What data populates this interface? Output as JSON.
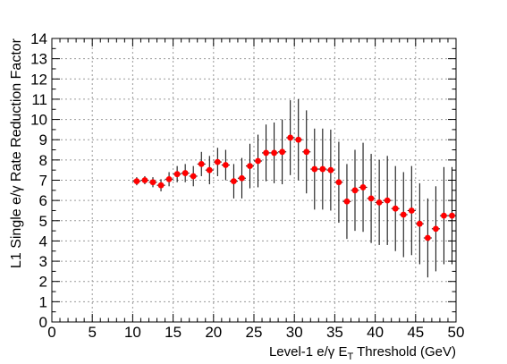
{
  "chart_data": {
    "type": "scatter",
    "xlabel_main": "Level-1 e/γ E",
    "xlabel_sub": "T",
    "xlabel_tail": " Threshold (GeV)",
    "ylabel": "L1 Single e/γ Rate Reduction Factor",
    "xlim": [
      0,
      50
    ],
    "ylim": [
      0,
      14
    ],
    "grid": true,
    "x_ticks": [
      0,
      5,
      10,
      15,
      20,
      25,
      30,
      35,
      40,
      45,
      50
    ],
    "y_ticks": [
      0,
      1,
      2,
      3,
      4,
      5,
      6,
      7,
      8,
      9,
      10,
      11,
      12,
      13,
      14
    ],
    "marker_color": "#ff0000",
    "points": [
      {
        "x": 10.5,
        "y": 6.95,
        "err": 0.2
      },
      {
        "x": 11.5,
        "y": 7.0,
        "err": 0.2
      },
      {
        "x": 12.5,
        "y": 6.9,
        "err": 0.25
      },
      {
        "x": 13.5,
        "y": 6.75,
        "err": 0.3
      },
      {
        "x": 14.5,
        "y": 7.05,
        "err": 0.35
      },
      {
        "x": 15.5,
        "y": 7.3,
        "err": 0.4
      },
      {
        "x": 16.5,
        "y": 7.35,
        "err": 0.45
      },
      {
        "x": 17.5,
        "y": 7.2,
        "err": 0.5
      },
      {
        "x": 18.5,
        "y": 7.8,
        "err": 0.6
      },
      {
        "x": 19.5,
        "y": 7.5,
        "err": 0.7
      },
      {
        "x": 20.5,
        "y": 7.9,
        "err": 0.7
      },
      {
        "x": 21.5,
        "y": 7.75,
        "err": 0.75
      },
      {
        "x": 22.5,
        "y": 6.95,
        "err": 0.85
      },
      {
        "x": 23.5,
        "y": 7.1,
        "err": 1.0
      },
      {
        "x": 24.5,
        "y": 7.7,
        "err": 1.1
      },
      {
        "x": 25.5,
        "y": 7.95,
        "err": 1.3
      },
      {
        "x": 26.5,
        "y": 8.35,
        "err": 1.4
      },
      {
        "x": 27.5,
        "y": 8.35,
        "err": 1.5
      },
      {
        "x": 28.5,
        "y": 8.4,
        "err": 1.6
      },
      {
        "x": 29.5,
        "y": 9.1,
        "err": 1.85
      },
      {
        "x": 30.5,
        "y": 9.0,
        "err": 2.0
      },
      {
        "x": 31.5,
        "y": 8.4,
        "err": 2.05
      },
      {
        "x": 32.5,
        "y": 7.55,
        "err": 2.0
      },
      {
        "x": 33.5,
        "y": 7.55,
        "err": 2.0
      },
      {
        "x": 34.5,
        "y": 7.5,
        "err": 2.0
      },
      {
        "x": 35.5,
        "y": 6.9,
        "err": 2.0
      },
      {
        "x": 36.5,
        "y": 5.95,
        "err": 1.85
      },
      {
        "x": 37.5,
        "y": 6.5,
        "err": 2.0
      },
      {
        "x": 38.5,
        "y": 6.65,
        "err": 2.2
      },
      {
        "x": 39.5,
        "y": 6.1,
        "err": 2.2
      },
      {
        "x": 40.5,
        "y": 5.9,
        "err": 2.1
      },
      {
        "x": 41.5,
        "y": 6.0,
        "err": 2.2
      },
      {
        "x": 42.5,
        "y": 5.6,
        "err": 2.1
      },
      {
        "x": 43.5,
        "y": 5.3,
        "err": 2.1
      },
      {
        "x": 44.5,
        "y": 5.5,
        "err": 2.2
      },
      {
        "x": 45.5,
        "y": 4.85,
        "err": 2.0
      },
      {
        "x": 46.5,
        "y": 4.15,
        "err": 1.95
      },
      {
        "x": 47.5,
        "y": 4.6,
        "err": 2.1
      },
      {
        "x": 48.5,
        "y": 5.25,
        "err": 2.4
      },
      {
        "x": 49.5,
        "y": 5.25,
        "err": 2.4
      }
    ]
  }
}
